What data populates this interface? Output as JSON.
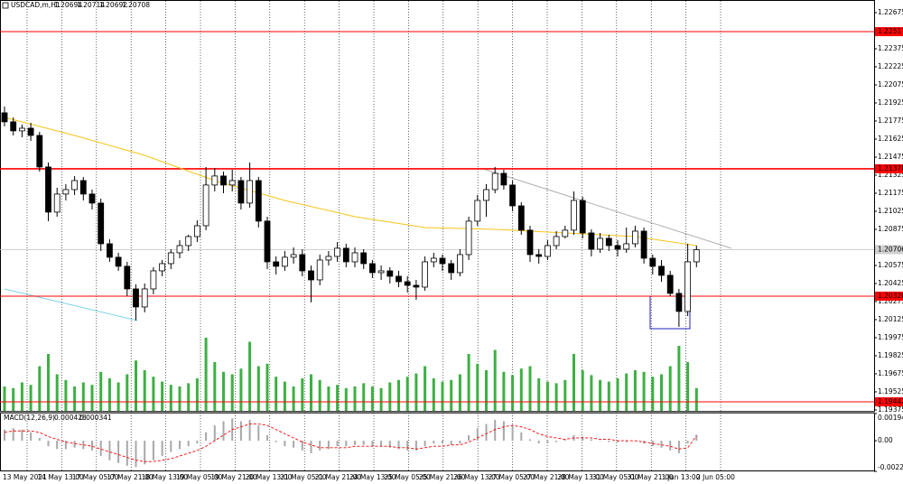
{
  "chart_data": [
    {
      "type": "candlestick",
      "title": "USDCAD,m,H1",
      "quote": [
        1.20694,
        1.20714,
        1.20692,
        1.20708
      ],
      "candles": [
        [
          1.21843,
          1.21895,
          1.2173,
          1.21768
        ],
        [
          1.21768,
          1.21805,
          1.21655,
          1.21693
        ],
        [
          1.21693,
          1.21745,
          1.2164,
          1.21715
        ],
        [
          1.21715,
          1.2176,
          1.2161,
          1.21655
        ],
        [
          1.21655,
          1.21685,
          1.21355,
          1.21393
        ],
        [
          1.21393,
          1.2143,
          1.20943,
          1.21018
        ],
        [
          1.21018,
          1.2122,
          1.2098,
          1.21168
        ],
        [
          1.21168,
          1.2125,
          1.21115,
          1.21205
        ],
        [
          1.21205,
          1.21318,
          1.2116,
          1.2128
        ],
        [
          1.2128,
          1.2131,
          1.21115,
          1.21168
        ],
        [
          1.21168,
          1.21205,
          1.2104,
          1.21093
        ],
        [
          1.21093,
          1.2113,
          1.20695,
          1.20755
        ],
        [
          1.20755,
          1.20793,
          1.20605,
          1.20643
        ],
        [
          1.20643,
          1.2068,
          1.2053,
          1.20568
        ],
        [
          1.20568,
          1.20605,
          1.2032,
          1.2038
        ],
        [
          1.2038,
          1.20418,
          1.20118,
          1.2023
        ],
        [
          1.2023,
          1.20425,
          1.20185,
          1.2038
        ],
        [
          1.2038,
          1.2056,
          1.20335,
          1.2053
        ],
        [
          1.2053,
          1.2062,
          1.20485,
          1.2059
        ],
        [
          1.2059,
          1.2071,
          1.20545,
          1.2068
        ],
        [
          1.2068,
          1.20785,
          1.20635,
          1.2074
        ],
        [
          1.2074,
          1.2083,
          1.20695,
          1.20815
        ],
        [
          1.20815,
          1.2095,
          1.2077,
          1.20905
        ],
        [
          1.20905,
          1.21393,
          1.20868,
          1.21243
        ],
        [
          1.21243,
          1.21385,
          1.2119,
          1.21318
        ],
        [
          1.21318,
          1.21355,
          1.21175,
          1.21243
        ],
        [
          1.21243,
          1.2137,
          1.2119,
          1.2128
        ],
        [
          1.2128,
          1.2131,
          1.2104,
          1.21093
        ],
        [
          1.21093,
          1.2143,
          1.21055,
          1.2128
        ],
        [
          1.2128,
          1.2131,
          1.2089,
          1.20943
        ],
        [
          1.20943,
          1.2098,
          1.20545,
          1.20605
        ],
        [
          1.20605,
          1.2065,
          1.205,
          1.20568
        ],
        [
          1.20568,
          1.20695,
          1.2053,
          1.20643
        ],
        [
          1.20643,
          1.20725,
          1.2059,
          1.20665
        ],
        [
          1.20665,
          1.2071,
          1.20485,
          1.2053
        ],
        [
          1.2053,
          1.20575,
          1.20268,
          1.20455
        ],
        [
          1.20455,
          1.20665,
          1.2041,
          1.2062
        ],
        [
          1.2062,
          1.20695,
          1.20575,
          1.2065
        ],
        [
          1.2065,
          1.2077,
          1.20605,
          1.20718
        ],
        [
          1.20718,
          1.20755,
          1.2056,
          1.20605
        ],
        [
          1.20605,
          1.20725,
          1.2056,
          1.2068
        ],
        [
          1.2068,
          1.2071,
          1.20545,
          1.2059
        ],
        [
          1.2059,
          1.2062,
          1.2047,
          1.20515
        ],
        [
          1.20515,
          1.20575,
          1.20455,
          1.2053
        ],
        [
          1.2053,
          1.2056,
          1.20425,
          1.20485
        ],
        [
          1.20485,
          1.2053,
          1.20395,
          1.2044
        ],
        [
          1.2044,
          1.20485,
          1.2035,
          1.2041
        ],
        [
          1.2041,
          1.20455,
          1.2029,
          1.20395
        ],
        [
          1.20395,
          1.2065,
          1.20365,
          1.20605
        ],
        [
          1.20605,
          1.2068,
          1.2056,
          1.20635
        ],
        [
          1.20635,
          1.20665,
          1.2053,
          1.2059
        ],
        [
          1.2059,
          1.2062,
          1.20455,
          1.20515
        ],
        [
          1.20515,
          1.2071,
          1.20485,
          1.20665
        ],
        [
          1.20665,
          1.2098,
          1.2062,
          1.20943
        ],
        [
          1.20943,
          1.2116,
          1.20905,
          1.21115
        ],
        [
          1.21115,
          1.2125,
          1.2098,
          1.21205
        ],
        [
          1.21205,
          1.21393,
          1.21175,
          1.2134
        ],
        [
          1.2134,
          1.2137,
          1.21205,
          1.21243
        ],
        [
          1.21243,
          1.2128,
          1.21025,
          1.2107
        ],
        [
          1.2107,
          1.211,
          1.2083,
          1.20868
        ],
        [
          1.20868,
          1.20905,
          1.20605,
          1.20665
        ],
        [
          1.20665,
          1.2071,
          1.2059,
          1.2065
        ],
        [
          1.2065,
          1.20785,
          1.2062,
          1.2074
        ],
        [
          1.2074,
          1.2086,
          1.2071,
          1.20815
        ],
        [
          1.20815,
          1.20905,
          1.208,
          1.20868
        ],
        [
          1.20868,
          1.2119,
          1.2083,
          1.21115
        ],
        [
          1.21115,
          1.21145,
          1.208,
          1.20845
        ],
        [
          1.20845,
          1.20875,
          1.2065,
          1.2071
        ],
        [
          1.2071,
          1.20845,
          1.2068,
          1.208
        ],
        [
          1.208,
          1.2083,
          1.20695,
          1.2074
        ],
        [
          1.2074,
          1.20785,
          1.2065,
          1.2071
        ],
        [
          1.2071,
          1.2089,
          1.2068,
          1.20755
        ],
        [
          1.20755,
          1.20905,
          1.20725,
          1.2086
        ],
        [
          1.2086,
          1.2089,
          1.2059,
          1.20635
        ],
        [
          1.20635,
          1.20665,
          1.205,
          1.20568
        ],
        [
          1.20568,
          1.2062,
          1.2044,
          1.20493
        ],
        [
          1.20493,
          1.2053,
          1.2032,
          1.20343
        ],
        [
          1.20343,
          1.2038,
          1.20065,
          1.20193
        ],
        [
          1.20193,
          1.20755,
          1.20155,
          1.20605
        ],
        [
          1.20605,
          1.2074,
          1.2056,
          1.20706
        ]
      ],
      "volumes": [
        30,
        28,
        35,
        32,
        55,
        70,
        45,
        38,
        30,
        35,
        32,
        48,
        40,
        35,
        45,
        62,
        50,
        42,
        36,
        32,
        30,
        34,
        40,
        90,
        60,
        48,
        45,
        52,
        85,
        55,
        58,
        42,
        36,
        30,
        40,
        45,
        38,
        30,
        32,
        28,
        30,
        34,
        30,
        28,
        35,
        38,
        42,
        46,
        55,
        40,
        36,
        38,
        45,
        70,
        58,
        50,
        75,
        48,
        44,
        52,
        55,
        40,
        36,
        34,
        38,
        70,
        50,
        44,
        38,
        36,
        40,
        46,
        50,
        48,
        42,
        45,
        55,
        80,
        60,
        28
      ],
      "volume_color": "#3cb043",
      "ma": {
        "x": [
          0,
          8,
          16,
          24,
          32,
          40,
          48,
          56,
          64,
          72,
          79
        ],
        "values": [
          1.21805,
          1.21655,
          1.2149,
          1.2128,
          1.21115,
          1.2098,
          1.2089,
          1.20875,
          1.20845,
          1.20815,
          1.2074
        ],
        "color": "#f5c518"
      },
      "levels": [
        1.22517,
        1.21378,
        {
          "value": 1.2032,
          "label": "1.20320"
        },
        1.19442
      ],
      "level_color": "#ff0000",
      "last": 1.20706,
      "ylim": [
        1.19367,
        1.2278
      ],
      "yticks": [
        1.22675,
        1.22375,
        1.22225,
        1.22075,
        1.21925,
        1.21775,
        1.21625,
        1.21475,
        1.21325,
        1.21175,
        1.21025,
        1.20875,
        1.20575,
        1.20425,
        1.20275,
        1.20125,
        1.19975,
        1.19825,
        1.19675,
        1.19525,
        1.19375
      ],
      "time_labels": [
        "13 May 2021",
        "14 May 13:00",
        "17 May 05:00",
        "17 May 21:00",
        "18 May 13:00",
        "19 May 05:00",
        "19 May 21:00",
        "20 May 13:00",
        "21 May 05:00",
        "21 May 21:00",
        "24 May 13:00",
        "25 May 05:00",
        "25 May 21:00",
        "26 May 13:00",
        "27 May 05:00",
        "27 May 21:00",
        "28 May 13:00",
        "31 May 05:00",
        "31 May 21:00",
        "1 Jun 13:00",
        "2 Jun 05:00"
      ]
    },
    {
      "type": "macd",
      "title": "MACD(12,26,9)",
      "histogram": [
        0.0008,
        0.0009,
        0.0008,
        0.0006,
        0.0002,
        -0.0004,
        -0.0006,
        -0.0006,
        -0.0005,
        -0.0006,
        -0.0007,
        -0.0011,
        -0.0014,
        -0.0016,
        -0.0018,
        -0.0019,
        -0.0017,
        -0.0014,
        -0.0011,
        -0.0008,
        -0.0006,
        -0.0004,
        -0.0002,
        0.0006,
        0.0011,
        0.0014,
        0.0016,
        0.0014,
        0.0015,
        0.0011,
        0.0004,
        -0.0001,
        -0.0004,
        -0.0005,
        -0.0007,
        -0.0009,
        -0.0007,
        -0.0006,
        -0.0004,
        -0.0004,
        -0.0003,
        -0.0003,
        -0.0004,
        -0.0004,
        -0.0005,
        -0.0006,
        -0.0007,
        -0.0007,
        -0.0004,
        -0.0002,
        -0.0002,
        -0.0003,
        -0.0002,
        0.0004,
        0.0009,
        0.0012,
        0.0015,
        0.0014,
        0.0011,
        0.0006,
        0.0001,
        -0.0002,
        -0.0002,
        -0.0001,
        0.0001,
        0.0004,
        0.0003,
        0.0001,
        0,
        -0.0001,
        -0.0001,
        -0.0001,
        0,
        -0.0002,
        -0.0004,
        -0.0005,
        -0.0007,
        -0.0009,
        -0.0002,
        0.000428
      ],
      "signal": [
        0.0006,
        0.0007,
        0.0007,
        0.0007,
        0.0006,
        0.0003,
        0.0001,
        -0.0001,
        -0.0002,
        -0.0003,
        -0.0004,
        -0.0006,
        -0.0008,
        -0.001,
        -0.0012,
        -0.0014,
        -0.0015,
        -0.0015,
        -0.0014,
        -0.0013,
        -0.0011,
        -0.0009,
        -0.0007,
        -0.0004,
        0,
        0.0004,
        0.0008,
        0.001,
        0.0012,
        0.0012,
        0.0011,
        0.0008,
        0.0005,
        0.0002,
        -0.0001,
        -0.0003,
        -0.0005,
        -0.0005,
        -0.0005,
        -0.0005,
        -0.0004,
        -0.0004,
        -0.0004,
        -0.0004,
        -0.0004,
        -0.0005,
        -0.0005,
        -0.0006,
        -0.0005,
        -0.0004,
        -0.0004,
        -0.0003,
        -0.0003,
        -0.0001,
        0.0002,
        0.0005,
        0.0008,
        0.001,
        0.0011,
        0.001,
        0.0008,
        0.0005,
        0.0003,
        0.0002,
        0.0001,
        0.0002,
        0.0002,
        0.0002,
        0.0001,
        0.0001,
        0,
        0,
        0,
        -0.0001,
        -0.0002,
        -0.0003,
        -0.0004,
        -0.0006,
        -0.0005,
        0.000341
      ],
      "histogram_color": "#a8a8a8",
      "signal_color": "#ff0000",
      "ylim": [
        -0.002201,
        0.001949
      ],
      "yticks": [
        0.001949,
        {
          "value": 0,
          "label": "0.00"
        },
        -0.002201
      ]
    }
  ]
}
